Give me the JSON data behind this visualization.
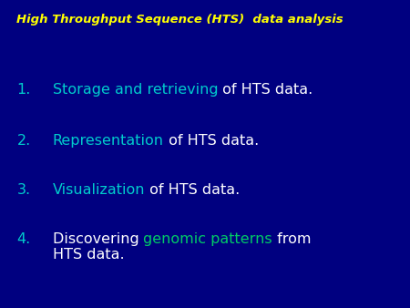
{
  "background_color": "#000080",
  "title": "High Throughput Sequence (HTS)  data analysis",
  "title_color": "#FFFF00",
  "title_fontsize": 9.5,
  "item_fontsize": 11.5,
  "figsize": [
    4.5,
    3.38
  ],
  "dpi": 100,
  "items": [
    {
      "number": "1.",
      "line1": [
        {
          "text": "Storage and retrieving",
          "color": "#00CCCC",
          "bold": false
        },
        {
          "text": " of HTS data.",
          "color": "#FFFFFF",
          "bold": false
        }
      ],
      "line2": null
    },
    {
      "number": "2.",
      "line1": [
        {
          "text": "Representation",
          "color": "#00CCCC",
          "bold": false
        },
        {
          "text": " of HTS data.",
          "color": "#FFFFFF",
          "bold": false
        }
      ],
      "line2": null
    },
    {
      "number": "3.",
      "line1": [
        {
          "text": "Visualization",
          "color": "#00CCCC",
          "bold": false
        },
        {
          "text": " of HTS data.",
          "color": "#FFFFFF",
          "bold": false
        }
      ],
      "line2": null
    },
    {
      "number": "4.",
      "line1": [
        {
          "text": "Discovering ",
          "color": "#FFFFFF",
          "bold": false
        },
        {
          "text": "genomic patterns",
          "color": "#00CC66",
          "bold": false
        },
        {
          "text": " from",
          "color": "#FFFFFF",
          "bold": false
        }
      ],
      "line2": [
        {
          "text": "HTS data.",
          "color": "#FFFFFF",
          "bold": false
        }
      ]
    }
  ]
}
